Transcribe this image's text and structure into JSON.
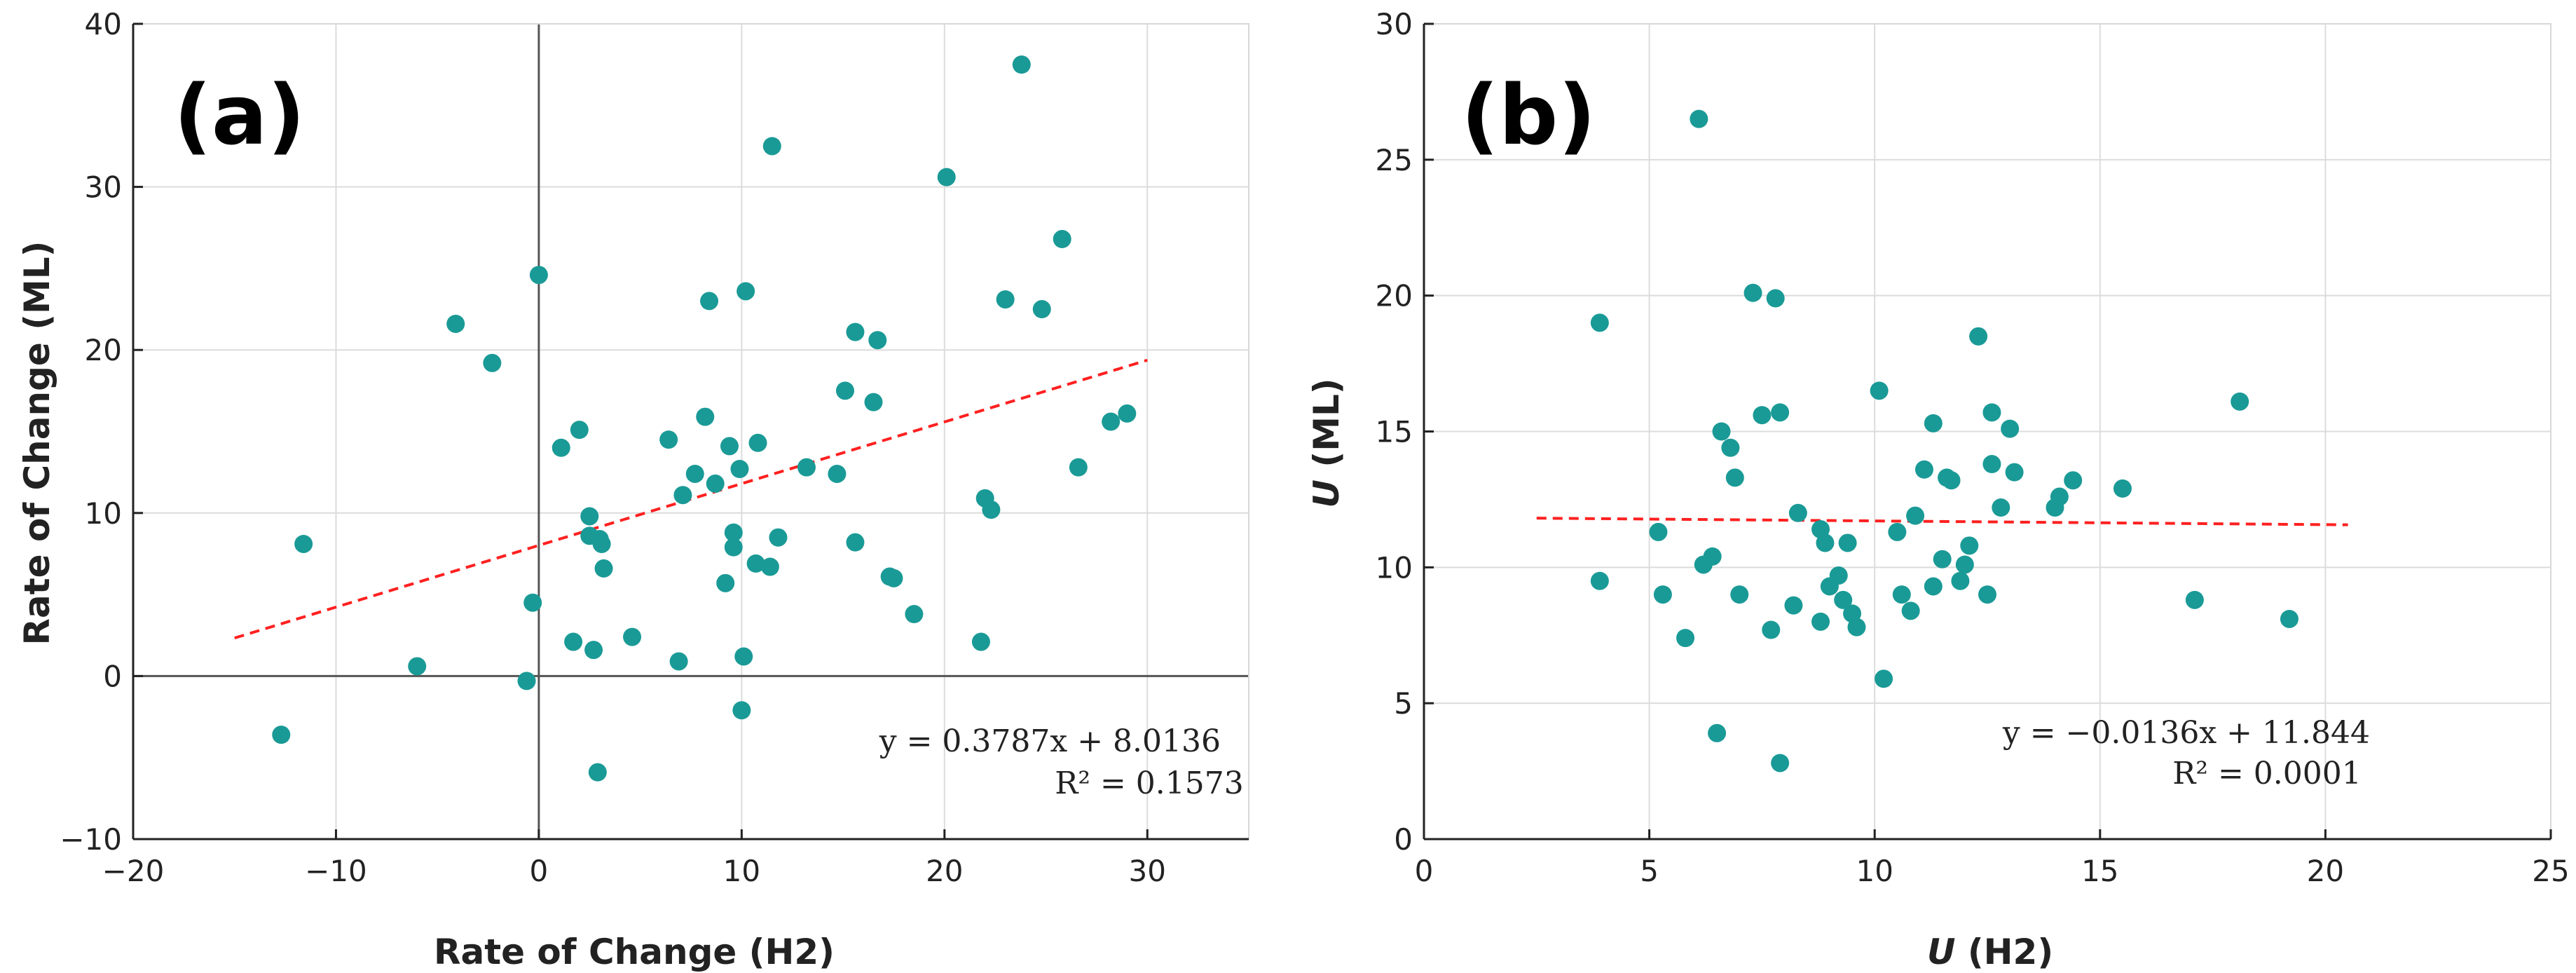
{
  "chart_data": [
    {
      "type": "scatter",
      "panel_label": "(a)",
      "xlabel": "Rate of Change (H2)",
      "ylabel": "Rate of Change (ML)",
      "xlim": [
        -20,
        35
      ],
      "ylim": [
        -10,
        40
      ],
      "xticks": [
        "−20",
        "−10",
        "0",
        "10",
        "20",
        "30"
      ],
      "yticks": [
        "−10",
        "0",
        "10",
        "20",
        "30",
        "40"
      ],
      "xtick_values": [
        -20,
        -10,
        0,
        10,
        20,
        30
      ],
      "ytick_values": [
        -10,
        0,
        10,
        20,
        30,
        40
      ],
      "grid": true,
      "zero_lines": true,
      "point_color": "#1a9a96",
      "fit_color": "#ff2020",
      "fit": {
        "slope": 0.3787,
        "intercept": 8.0136,
        "x_range": [
          -15,
          30
        ]
      },
      "equation": "y = 0.3787x + 8.0136",
      "r_squared": "R² = 0.1573",
      "points": [
        [
          -12.7,
          -3.6
        ],
        [
          -11.6,
          8.1
        ],
        [
          -6,
          0.6
        ],
        [
          -4.1,
          21.6
        ],
        [
          -2.3,
          19.2
        ],
        [
          -0.6,
          -0.3
        ],
        [
          -0.3,
          4.5
        ],
        [
          0,
          24.6
        ],
        [
          1.1,
          14.0
        ],
        [
          1.7,
          2.1
        ],
        [
          2.0,
          15.1
        ],
        [
          2.5,
          8.6
        ],
        [
          2.5,
          9.8
        ],
        [
          2.7,
          1.6
        ],
        [
          2.9,
          -5.9
        ],
        [
          3.0,
          8.4
        ],
        [
          3.1,
          8.1
        ],
        [
          3.2,
          6.6
        ],
        [
          4.6,
          2.4
        ],
        [
          6.4,
          14.5
        ],
        [
          6.9,
          0.9
        ],
        [
          7.1,
          11.1
        ],
        [
          7.7,
          12.4
        ],
        [
          8.2,
          15.9
        ],
        [
          8.4,
          23.0
        ],
        [
          8.7,
          11.8
        ],
        [
          9.2,
          5.7
        ],
        [
          9.4,
          14.1
        ],
        [
          9.6,
          8.8
        ],
        [
          9.6,
          7.9
        ],
        [
          9.9,
          12.7
        ],
        [
          10.0,
          -2.1
        ],
        [
          10.1,
          1.2
        ],
        [
          10.2,
          23.6
        ],
        [
          10.7,
          6.9
        ],
        [
          10.8,
          14.3
        ],
        [
          11.4,
          6.7
        ],
        [
          11.5,
          32.5
        ],
        [
          11.8,
          8.5
        ],
        [
          13.2,
          12.8
        ],
        [
          14.7,
          12.4
        ],
        [
          15.1,
          17.5
        ],
        [
          15.6,
          21.1
        ],
        [
          15.6,
          8.2
        ],
        [
          16.5,
          16.8
        ],
        [
          16.7,
          20.6
        ],
        [
          17.3,
          6.1
        ],
        [
          17.5,
          6.0
        ],
        [
          18.5,
          3.8
        ],
        [
          20.1,
          30.6
        ],
        [
          21.8,
          2.1
        ],
        [
          22.0,
          10.9
        ],
        [
          22.3,
          10.2
        ],
        [
          23.0,
          23.1
        ],
        [
          23.8,
          37.5
        ],
        [
          24.8,
          22.5
        ],
        [
          25.8,
          26.8
        ],
        [
          26.6,
          12.8
        ],
        [
          28.2,
          15.6
        ],
        [
          29.0,
          16.1
        ]
      ]
    },
    {
      "type": "scatter",
      "panel_label": "(b)",
      "xlabel_italic": "U",
      "xlabel_rest": " (H2)",
      "ylabel_italic": "U",
      "ylabel_rest": " (ML)",
      "xlim": [
        0,
        25
      ],
      "ylim": [
        0,
        30
      ],
      "xticks": [
        "0",
        "5",
        "10",
        "15",
        "20",
        "25"
      ],
      "yticks": [
        "0",
        "5",
        "10",
        "15",
        "20",
        "25",
        "30"
      ],
      "xtick_values": [
        0,
        5,
        10,
        15,
        20,
        25
      ],
      "ytick_values": [
        0,
        5,
        10,
        15,
        20,
        25,
        30
      ],
      "grid": true,
      "zero_lines": false,
      "point_color": "#1a9a96",
      "fit_color": "#ff2020",
      "fit": {
        "slope": -0.0136,
        "intercept": 11.844,
        "x_range": [
          2.5,
          20.5
        ]
      },
      "equation": "y = −0.0136x + 11.844",
      "r_squared": "R² = 0.0001",
      "points": [
        [
          3.9,
          19.0
        ],
        [
          3.9,
          9.5
        ],
        [
          5.2,
          11.3
        ],
        [
          5.3,
          9.0
        ],
        [
          5.8,
          7.4
        ],
        [
          6.1,
          26.5
        ],
        [
          6.2,
          10.1
        ],
        [
          6.4,
          10.4
        ],
        [
          6.5,
          3.9
        ],
        [
          6.6,
          15.0
        ],
        [
          6.8,
          14.4
        ],
        [
          6.9,
          13.3
        ],
        [
          7.0,
          9.0
        ],
        [
          7.3,
          20.1
        ],
        [
          7.5,
          15.6
        ],
        [
          7.7,
          7.7
        ],
        [
          7.8,
          19.9
        ],
        [
          7.9,
          15.7
        ],
        [
          7.9,
          2.8
        ],
        [
          8.2,
          8.6
        ],
        [
          8.3,
          12.0
        ],
        [
          8.8,
          11.4
        ],
        [
          8.8,
          8.0
        ],
        [
          8.9,
          10.9
        ],
        [
          9.0,
          9.3
        ],
        [
          9.2,
          9.7
        ],
        [
          9.3,
          8.8
        ],
        [
          9.4,
          10.9
        ],
        [
          9.5,
          8.3
        ],
        [
          9.6,
          7.8
        ],
        [
          10.1,
          16.5
        ],
        [
          10.2,
          5.9
        ],
        [
          10.5,
          11.3
        ],
        [
          10.6,
          9.0
        ],
        [
          10.8,
          8.4
        ],
        [
          10.9,
          11.9
        ],
        [
          11.1,
          13.6
        ],
        [
          11.3,
          9.3
        ],
        [
          11.3,
          15.3
        ],
        [
          11.5,
          10.3
        ],
        [
          11.6,
          13.3
        ],
        [
          11.7,
          13.2
        ],
        [
          11.9,
          9.5
        ],
        [
          12.0,
          10.1
        ],
        [
          12.1,
          10.8
        ],
        [
          12.3,
          18.5
        ],
        [
          12.5,
          9.0
        ],
        [
          12.6,
          15.7
        ],
        [
          12.6,
          13.8
        ],
        [
          12.8,
          12.2
        ],
        [
          13.0,
          15.1
        ],
        [
          13.1,
          13.5
        ],
        [
          14.0,
          12.2
        ],
        [
          14.1,
          12.6
        ],
        [
          14.4,
          13.2
        ],
        [
          15.5,
          12.9
        ],
        [
          17.1,
          8.8
        ],
        [
          18.1,
          16.1
        ],
        [
          19.2,
          8.1
        ]
      ]
    }
  ]
}
